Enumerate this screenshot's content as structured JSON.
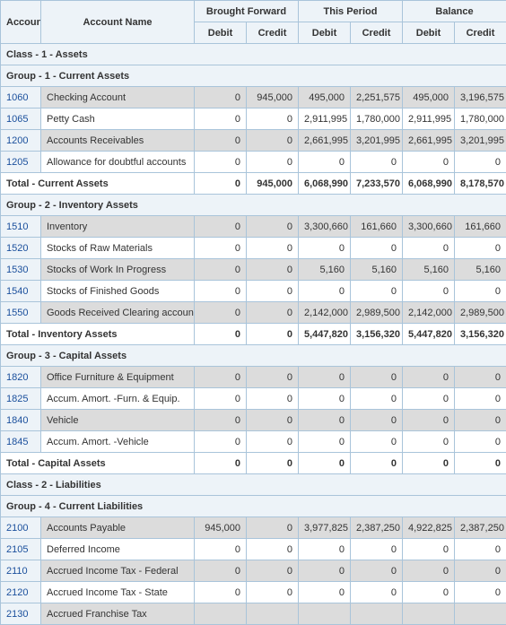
{
  "columns": {
    "account": "Account",
    "account_name": "Account Name",
    "brought_forward": "Brought Forward",
    "this_period": "This Period",
    "balance": "Balance",
    "debit": "Debit",
    "credit": "Credit"
  },
  "sections": [
    {
      "type": "header",
      "label": "Class - 1 - Assets"
    },
    {
      "type": "header",
      "label": "Group - 1 - Current Assets"
    },
    {
      "type": "row",
      "acct": "1060",
      "name": "Checking Account",
      "bf_d": "0",
      "bf_c": "945,000",
      "tp_d": "495,000",
      "tp_c": "2,251,575",
      "bal_d": "495,000",
      "bal_c": "3,196,575"
    },
    {
      "type": "row",
      "acct": "1065",
      "name": "Petty Cash",
      "bf_d": "0",
      "bf_c": "0",
      "tp_d": "2,911,995",
      "tp_c": "1,780,000",
      "bal_d": "2,911,995",
      "bal_c": "1,780,000"
    },
    {
      "type": "row",
      "acct": "1200",
      "name": "Accounts Receivables",
      "bf_d": "0",
      "bf_c": "0",
      "tp_d": "2,661,995",
      "tp_c": "3,201,995",
      "bal_d": "2,661,995",
      "bal_c": "3,201,995"
    },
    {
      "type": "row",
      "acct": "1205",
      "name": "Allowance for doubtful accounts",
      "bf_d": "0",
      "bf_c": "0",
      "tp_d": "0",
      "tp_c": "0",
      "bal_d": "0",
      "bal_c": "0"
    },
    {
      "type": "total",
      "label": "Total - Current Assets",
      "bf_d": "0",
      "bf_c": "945,000",
      "tp_d": "6,068,990",
      "tp_c": "7,233,570",
      "bal_d": "6,068,990",
      "bal_c": "8,178,570"
    },
    {
      "type": "header",
      "label": "Group - 2 - Inventory Assets"
    },
    {
      "type": "row",
      "acct": "1510",
      "name": "Inventory",
      "bf_d": "0",
      "bf_c": "0",
      "tp_d": "3,300,660",
      "tp_c": "161,660",
      "bal_d": "3,300,660",
      "bal_c": "161,660"
    },
    {
      "type": "row",
      "acct": "1520",
      "name": "Stocks of Raw Materials",
      "bf_d": "0",
      "bf_c": "0",
      "tp_d": "0",
      "tp_c": "0",
      "bal_d": "0",
      "bal_c": "0"
    },
    {
      "type": "row",
      "acct": "1530",
      "name": "Stocks of Work In Progress",
      "bf_d": "0",
      "bf_c": "0",
      "tp_d": "5,160",
      "tp_c": "5,160",
      "bal_d": "5,160",
      "bal_c": "5,160"
    },
    {
      "type": "row",
      "acct": "1540",
      "name": "Stocks of Finished Goods",
      "bf_d": "0",
      "bf_c": "0",
      "tp_d": "0",
      "tp_c": "0",
      "bal_d": "0",
      "bal_c": "0"
    },
    {
      "type": "row",
      "acct": "1550",
      "name": "Goods Received Clearing account",
      "bf_d": "0",
      "bf_c": "0",
      "tp_d": "2,142,000",
      "tp_c": "2,989,500",
      "bal_d": "2,142,000",
      "bal_c": "2,989,500"
    },
    {
      "type": "total",
      "label": "Total - Inventory Assets",
      "bf_d": "0",
      "bf_c": "0",
      "tp_d": "5,447,820",
      "tp_c": "3,156,320",
      "bal_d": "5,447,820",
      "bal_c": "3,156,320"
    },
    {
      "type": "header",
      "label": "Group - 3 - Capital Assets"
    },
    {
      "type": "row",
      "acct": "1820",
      "name": "Office Furniture & Equipment",
      "bf_d": "0",
      "bf_c": "0",
      "tp_d": "0",
      "tp_c": "0",
      "bal_d": "0",
      "bal_c": "0"
    },
    {
      "type": "row",
      "acct": "1825",
      "name": "Accum. Amort. -Furn. & Equip.",
      "bf_d": "0",
      "bf_c": "0",
      "tp_d": "0",
      "tp_c": "0",
      "bal_d": "0",
      "bal_c": "0"
    },
    {
      "type": "row",
      "acct": "1840",
      "name": "Vehicle",
      "bf_d": "0",
      "bf_c": "0",
      "tp_d": "0",
      "tp_c": "0",
      "bal_d": "0",
      "bal_c": "0"
    },
    {
      "type": "row",
      "acct": "1845",
      "name": "Accum. Amort. -Vehicle",
      "bf_d": "0",
      "bf_c": "0",
      "tp_d": "0",
      "tp_c": "0",
      "bal_d": "0",
      "bal_c": "0"
    },
    {
      "type": "total",
      "label": "Total - Capital Assets",
      "bf_d": "0",
      "bf_c": "0",
      "tp_d": "0",
      "tp_c": "0",
      "bal_d": "0",
      "bal_c": "0"
    },
    {
      "type": "header",
      "label": "Class - 2 - Liabilities"
    },
    {
      "type": "header",
      "label": "Group - 4 - Current Liabilities"
    },
    {
      "type": "row",
      "acct": "2100",
      "name": "Accounts Payable",
      "bf_d": "945,000",
      "bf_c": "0",
      "tp_d": "3,977,825",
      "tp_c": "2,387,250",
      "bal_d": "4,922,825",
      "bal_c": "2,387,250"
    },
    {
      "type": "row",
      "acct": "2105",
      "name": "Deferred Income",
      "bf_d": "0",
      "bf_c": "0",
      "tp_d": "0",
      "tp_c": "0",
      "bal_d": "0",
      "bal_c": "0"
    },
    {
      "type": "row",
      "acct": "2110",
      "name": "Accrued Income Tax - Federal",
      "bf_d": "0",
      "bf_c": "0",
      "tp_d": "0",
      "tp_c": "0",
      "bal_d": "0",
      "bal_c": "0"
    },
    {
      "type": "row",
      "acct": "2120",
      "name": "Accrued Income Tax - State",
      "bf_d": "0",
      "bf_c": "0",
      "tp_d": "0",
      "tp_c": "0",
      "bal_d": "0",
      "bal_c": "0"
    },
    {
      "type": "row",
      "acct": "2130",
      "name": "Accrued Franchise Tax",
      "bf_d": "",
      "bf_c": "",
      "tp_d": "",
      "tp_c": "",
      "bal_d": "",
      "bal_c": ""
    }
  ]
}
